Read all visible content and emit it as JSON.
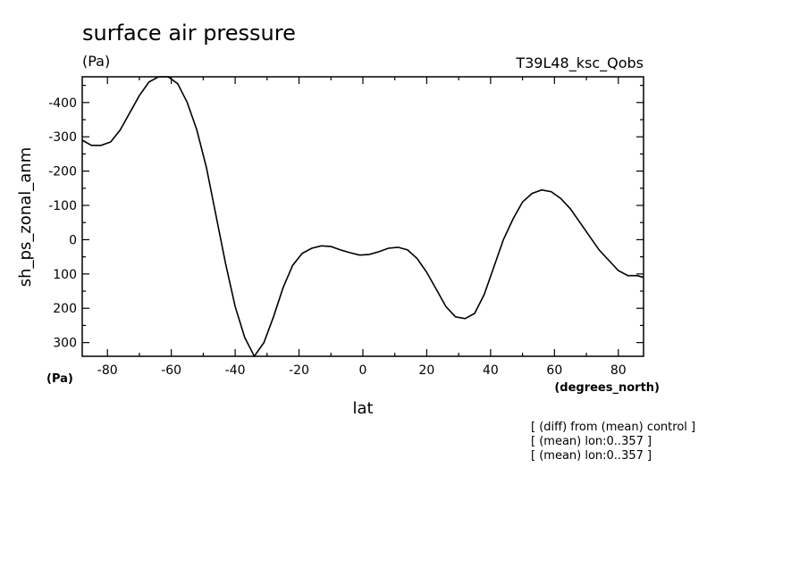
{
  "chart_data": {
    "type": "line",
    "title": "surface air pressure",
    "title_unit": "(Pa)",
    "run_label": "T39L48_ksc_Qobs",
    "xlabel": "lat",
    "x_unit": "(degrees_north)",
    "ylabel": "sh_ps_zonal_anm",
    "y_unit": "(Pa)",
    "xlim": [
      -87.9,
      87.9
    ],
    "ylim": [
      -475,
      340
    ],
    "y_inverted": true,
    "grid": false,
    "x_ticks": [
      -80,
      -60,
      -40,
      -20,
      0,
      20,
      40,
      60,
      80
    ],
    "y_ticks": [
      -400,
      -300,
      -200,
      -100,
      0,
      100,
      200,
      300
    ],
    "series": [
      {
        "x": [
          -87.9,
          -85,
          -82,
          -79,
          -76,
          -73,
          -70,
          -67,
          -64,
          -61,
          -58,
          -55,
          -52,
          -49,
          -46,
          -43,
          -40,
          -37,
          -34,
          -31,
          -28,
          -25,
          -22,
          -19,
          -16,
          -13,
          -10,
          -7,
          -4,
          -1,
          2,
          5,
          8,
          11,
          14,
          17,
          20,
          23,
          26,
          29,
          32,
          35,
          38,
          41,
          44,
          47,
          50,
          53,
          56,
          59,
          62,
          65,
          68,
          71,
          74,
          77,
          80,
          83,
          86,
          87.9
        ],
        "y": [
          -290,
          -275,
          -275,
          -285,
          -320,
          -370,
          -420,
          -460,
          -475,
          -475,
          -455,
          -400,
          -320,
          -210,
          -70,
          70,
          195,
          285,
          340,
          300,
          225,
          140,
          75,
          40,
          25,
          18,
          20,
          30,
          38,
          45,
          43,
          35,
          25,
          22,
          30,
          55,
          95,
          145,
          195,
          225,
          230,
          215,
          160,
          80,
          0,
          -60,
          -110,
          -135,
          -145,
          -140,
          -120,
          -90,
          -50,
          -10,
          30,
          60,
          90,
          105,
          105,
          110
        ]
      }
    ],
    "annotations": [
      "[ (diff) from (mean) control ]",
      "[ (mean) lon:0..357 ]",
      "[ (mean) lon:0..357 ]"
    ]
  }
}
